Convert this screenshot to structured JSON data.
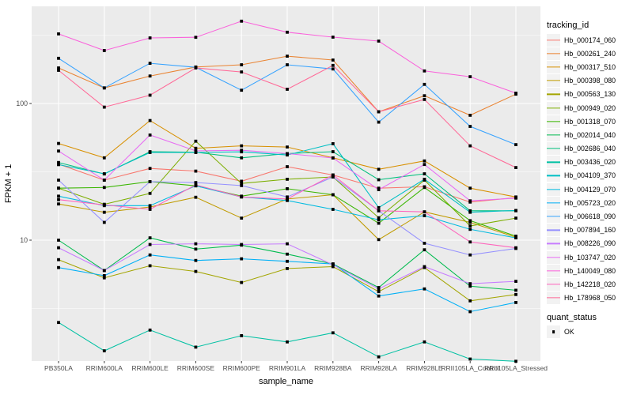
{
  "chart_data": {
    "type": "line",
    "xlabel": "sample_name",
    "ylabel": "FPKM + 1",
    "y_scale": "log10",
    "y_ticks": [
      100,
      10
    ],
    "y_minor_gridlines": [
      316.2,
      31.62,
      3.162
    ],
    "ylim": [
      1.3,
      515
    ],
    "grid": "on",
    "legend_position": "right",
    "categories": [
      "PB350LA",
      "RRIM600LA",
      "RRIM600LE",
      "RRIM600SE",
      "RRIM600PE",
      "RRIM901LA",
      "RRIM928BA",
      "RRIM928LA",
      "RRIM928LE",
      "RRII105LA_Control",
      "RRII105LA_Stressed"
    ],
    "series": [
      {
        "id": "Hb_000174_060",
        "color": "#F8766D",
        "quant_status": "OK",
        "values": [
          36,
          27.5,
          33.5,
          32,
          27,
          34.5,
          30,
          24,
          24.6,
          19,
          20.5
        ]
      },
      {
        "id": "Hb_000261_240",
        "color": "#EA8331",
        "quant_status": "OK",
        "values": [
          182,
          130,
          159,
          185,
          192,
          222,
          208,
          87,
          114,
          82,
          117
        ]
      },
      {
        "id": "Hb_000317_510",
        "color": "#D89000",
        "quant_status": "OK",
        "values": [
          51,
          40,
          75,
          47,
          49,
          48,
          40,
          33,
          38,
          24,
          20.7
        ]
      },
      {
        "id": "Hb_000398_080",
        "color": "#C09B00",
        "quant_status": "OK",
        "values": [
          18.4,
          16,
          17.5,
          20.6,
          14.5,
          20,
          21.5,
          10.1,
          16.1,
          13.5,
          10.5
        ]
      },
      {
        "id": "Hb_000563_130",
        "color": "#A3A500",
        "quant_status": "OK",
        "values": [
          7.2,
          5.3,
          6.5,
          5.9,
          4.9,
          6.2,
          6.4,
          4.2,
          6.3,
          3.6,
          4.0
        ]
      },
      {
        "id": "Hb_000949_020",
        "color": "#7CAE00",
        "quant_status": "OK",
        "values": [
          24,
          18.3,
          22,
          53,
          26,
          27.9,
          29,
          14.6,
          27.5,
          12.7,
          14.5
        ]
      },
      {
        "id": "Hb_001318_070",
        "color": "#39B600",
        "quant_status": "OK",
        "values": [
          24,
          24.3,
          26.8,
          25,
          21,
          23.8,
          21.5,
          13.3,
          24.3,
          13.9,
          10.7
        ]
      },
      {
        "id": "Hb_002014_040",
        "color": "#00BB4E",
        "quant_status": "OK",
        "values": [
          10,
          6,
          10.4,
          8.6,
          9.2,
          7.9,
          6.7,
          4.5,
          8.5,
          4.6,
          4.3
        ]
      },
      {
        "id": "Hb_002686_040",
        "color": "#00BF7D",
        "quant_status": "OK",
        "values": [
          37,
          30.5,
          44.4,
          44,
          40,
          43,
          44.4,
          27.7,
          30.6,
          16.4,
          16.4
        ]
      },
      {
        "id": "Hb_003436_020",
        "color": "#00C1A3",
        "quant_status": "OK",
        "values": [
          2.5,
          1.55,
          2.2,
          1.65,
          2.0,
          1.8,
          2.1,
          1.4,
          1.8,
          1.35,
          1.3
        ]
      },
      {
        "id": "Hb_004109_370",
        "color": "#00BFC4",
        "quant_status": "OK",
        "values": [
          35.7,
          30.6,
          43.8,
          43.8,
          44.3,
          42,
          50.8,
          17.3,
          27.9,
          16,
          16.5
        ]
      },
      {
        "id": "Hb_004129_070",
        "color": "#00BAE0",
        "quant_status": "OK",
        "values": [
          21,
          17.9,
          17.9,
          25,
          20.7,
          19.5,
          16.8,
          14.1,
          15.1,
          12,
          10.4
        ]
      },
      {
        "id": "Hb_005723_020",
        "color": "#00B0F6",
        "quant_status": "OK",
        "values": [
          6.3,
          5.5,
          7.8,
          7.1,
          7.3,
          7.0,
          6.7,
          3.9,
          4.4,
          3.0,
          3.5
        ]
      },
      {
        "id": "Hb_006618_090",
        "color": "#35A2FF",
        "quant_status": "OK",
        "values": [
          214,
          130,
          197,
          184,
          125,
          192,
          179,
          73,
          138,
          68,
          50
        ]
      },
      {
        "id": "Hb_007894_160",
        "color": "#9590FF",
        "quant_status": "OK",
        "values": [
          27.5,
          13.5,
          26.8,
          26.4,
          25.1,
          20.7,
          29,
          16.4,
          9.5,
          7.8,
          8.7
        ]
      },
      {
        "id": "Hb_008226_090",
        "color": "#C77CFF",
        "quant_status": "OK",
        "values": [
          8.8,
          6.0,
          9.3,
          9.4,
          9.3,
          9.4,
          6.6,
          4.4,
          6.4,
          4.8,
          5.0
        ]
      },
      {
        "id": "Hb_103747_020",
        "color": "#E76BF3",
        "quant_status": "OK",
        "values": [
          44.9,
          27.5,
          58.8,
          45,
          45.5,
          43,
          39.9,
          23.4,
          35.8,
          19.4,
          20.3
        ]
      },
      {
        "id": "Hb_140049_080",
        "color": "#FA62DB",
        "quant_status": "OK",
        "values": [
          323,
          244,
          302,
          305,
          400,
          332,
          306,
          286,
          173,
          157,
          119
        ]
      },
      {
        "id": "Hb_142218_020",
        "color": "#FF62BC",
        "quant_status": "OK",
        "values": [
          19.8,
          18.1,
          16.8,
          25.4,
          20.7,
          20,
          30,
          16.4,
          16.1,
          9.7,
          8.8
        ]
      },
      {
        "id": "Hb_178968_050",
        "color": "#FF6A98",
        "quant_status": "OK",
        "values": [
          175,
          94,
          115,
          182,
          170,
          127,
          190,
          87,
          107,
          49,
          34
        ]
      }
    ],
    "legend": {
      "tracking_title": "tracking_id",
      "quant_title": "quant_status",
      "quant_entries": [
        {
          "label": "OK",
          "marker": "black-square"
        }
      ]
    },
    "layout": {
      "panel_bg": "#EBEBEB",
      "gridline_color": "#FFFFFF",
      "point_color": "#000000",
      "tick_color": "#333333",
      "tick_label_color": "#4D4D4D"
    }
  }
}
